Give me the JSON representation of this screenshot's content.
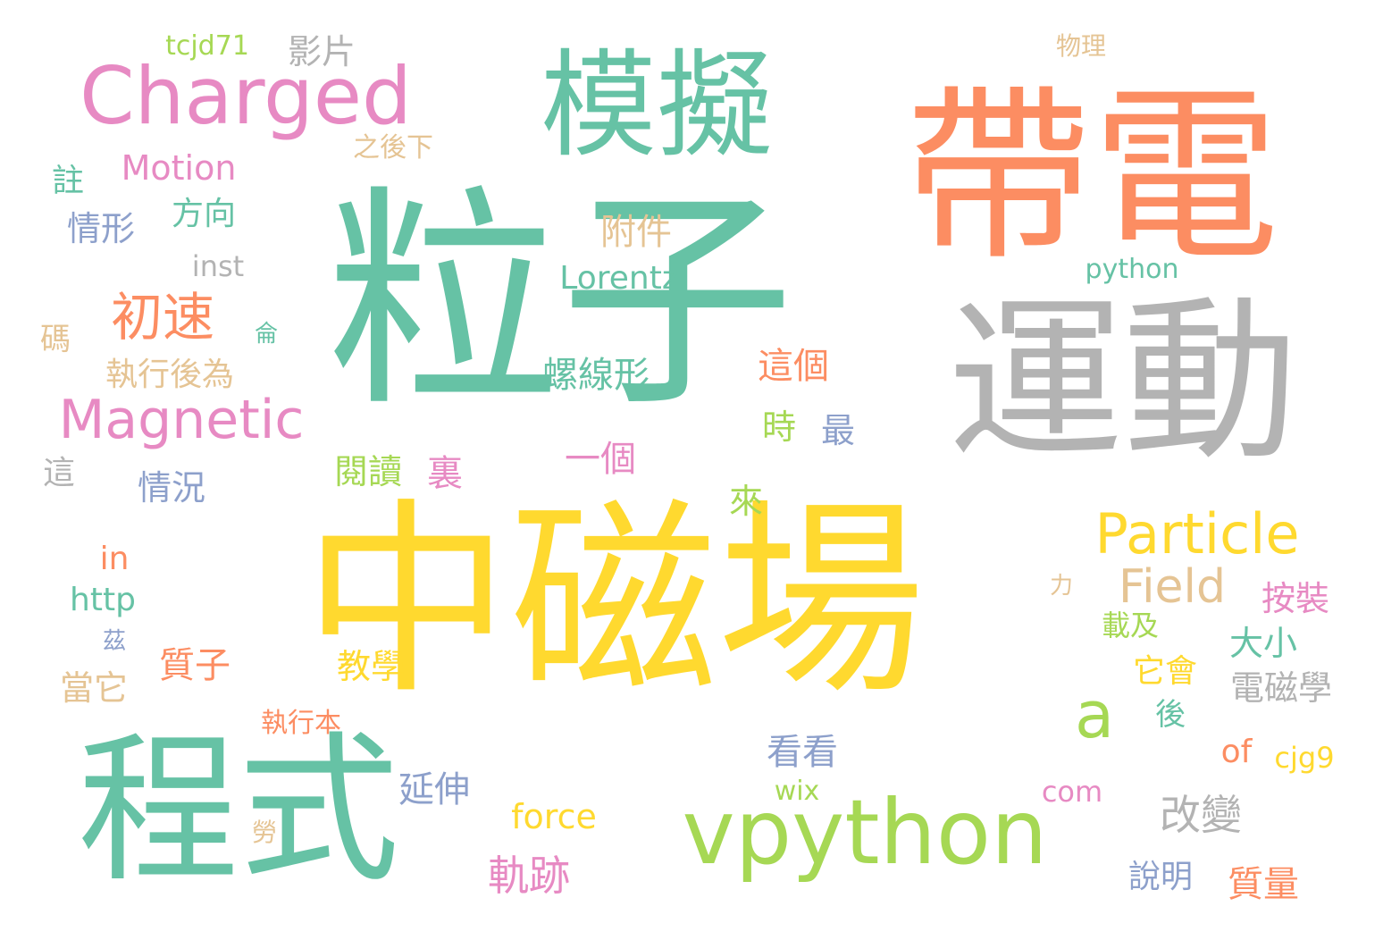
{
  "palette": {
    "teal": "#66c2a5",
    "orange": "#fc8d62",
    "blue": "#8da0cb",
    "pink": "#e78ac3",
    "green": "#a6d854",
    "yellow": "#ffd92f",
    "tan": "#e5c494",
    "gray": "#b3b3b3"
  },
  "words": [
    {
      "text": "粒子",
      "color": "teal"
    },
    {
      "text": "帶電",
      "color": "orange"
    },
    {
      "text": "中磁場",
      "color": "yellow"
    },
    {
      "text": "運動",
      "color": "gray"
    },
    {
      "text": "程式",
      "color": "teal"
    },
    {
      "text": "模擬",
      "color": "teal"
    },
    {
      "text": "Charged",
      "color": "pink"
    },
    {
      "text": "vpython",
      "color": "green"
    },
    {
      "text": "Magnetic",
      "color": "pink"
    },
    {
      "text": "Particle",
      "color": "yellow"
    },
    {
      "text": "a",
      "color": "green"
    },
    {
      "text": "初速",
      "color": "orange"
    },
    {
      "text": "Field",
      "color": "tan"
    },
    {
      "text": "改變",
      "color": "gray"
    },
    {
      "text": "軌跡",
      "color": "pink"
    },
    {
      "text": "Motion",
      "color": "pink"
    },
    {
      "text": "Lorentz",
      "color": "teal"
    },
    {
      "text": "螺線形",
      "color": "teal"
    },
    {
      "text": "執行後為",
      "color": "tan"
    },
    {
      "text": "附件",
      "color": "tan"
    },
    {
      "text": "方向",
      "color": "teal"
    },
    {
      "text": "情形",
      "color": "blue"
    },
    {
      "text": "影片",
      "color": "gray"
    },
    {
      "text": "tcjd71",
      "color": "green"
    },
    {
      "text": "之後下",
      "color": "tan"
    },
    {
      "text": "物理",
      "color": "tan"
    },
    {
      "text": "python",
      "color": "teal"
    },
    {
      "text": "inst",
      "color": "gray"
    },
    {
      "text": "註",
      "color": "teal"
    },
    {
      "text": "碼",
      "color": "tan"
    },
    {
      "text": "侖",
      "color": "teal"
    },
    {
      "text": "這個",
      "color": "orange"
    },
    {
      "text": "時",
      "color": "green"
    },
    {
      "text": "最",
      "color": "blue"
    },
    {
      "text": "一個",
      "color": "pink"
    },
    {
      "text": "閱讀",
      "color": "green"
    },
    {
      "text": "裏",
      "color": "pink"
    },
    {
      "text": "這",
      "color": "gray"
    },
    {
      "text": "情況",
      "color": "blue"
    },
    {
      "text": "來",
      "color": "green"
    },
    {
      "text": "in",
      "color": "orange"
    },
    {
      "text": "http",
      "color": "teal"
    },
    {
      "text": "茲",
      "color": "blue"
    },
    {
      "text": "質子",
      "color": "orange"
    },
    {
      "text": "當它",
      "color": "tan"
    },
    {
      "text": "教學",
      "color": "yellow"
    },
    {
      "text": "力",
      "color": "tan"
    },
    {
      "text": "按裝",
      "color": "pink"
    },
    {
      "text": "載及",
      "color": "green"
    },
    {
      "text": "大小",
      "color": "teal"
    },
    {
      "text": "它會",
      "color": "yellow"
    },
    {
      "text": "電磁學",
      "color": "gray"
    },
    {
      "text": "後",
      "color": "teal"
    },
    {
      "text": "執行本",
      "color": "orange"
    },
    {
      "text": "看看",
      "color": "blue"
    },
    {
      "text": "of",
      "color": "orange"
    },
    {
      "text": "cjg9",
      "color": "yellow"
    },
    {
      "text": "延伸",
      "color": "blue"
    },
    {
      "text": "wix",
      "color": "green"
    },
    {
      "text": "com",
      "color": "pink"
    },
    {
      "text": "force",
      "color": "yellow"
    },
    {
      "text": "勞",
      "color": "tan"
    },
    {
      "text": "說明",
      "color": "blue"
    },
    {
      "text": "質量",
      "color": "orange"
    }
  ]
}
